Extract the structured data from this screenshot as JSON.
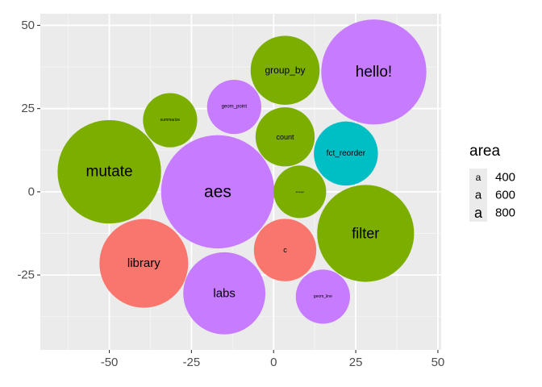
{
  "chart_data": {
    "type": "bubble",
    "xlim": [
      -71,
      51
    ],
    "ylim": [
      -47.5,
      53.5
    ],
    "x_ticks": [
      -50,
      -25,
      0,
      25,
      50
    ],
    "x_tick_labels": [
      "-50",
      "-25",
      "0",
      "25",
      "50"
    ],
    "y_ticks": [
      -25,
      0,
      25,
      50
    ],
    "y_tick_labels": [
      "-25",
      "0",
      "25",
      "50"
    ],
    "grid": true,
    "legend": {
      "title": "area",
      "position": "right",
      "symbol": "a",
      "entries": [
        {
          "label": "400"
        },
        {
          "label": "600"
        },
        {
          "label": "800"
        }
      ]
    },
    "bubbles": [
      {
        "label": "hello!",
        "x": 30.5,
        "y": 36.0,
        "r": 16.0,
        "color": "#c77cff"
      },
      {
        "label": "group_by",
        "x": 3.5,
        "y": 36.5,
        "r": 10.5,
        "color": "#7cae00"
      },
      {
        "label": "geom_point",
        "x": -12.0,
        "y": 25.5,
        "r": 8.25,
        "color": "#c77cff"
      },
      {
        "label": "summarize",
        "x": -31.5,
        "y": 21.5,
        "r": 8.25,
        "color": "#7cae00"
      },
      {
        "label": "count",
        "x": 3.5,
        "y": 16.5,
        "r": 9.0,
        "color": "#7cae00"
      },
      {
        "label": "fct_reorder",
        "x": 22.0,
        "y": 11.5,
        "r": 9.75,
        "color": "#00bfc4"
      },
      {
        "label": "mutate",
        "x": -50.0,
        "y": 6.0,
        "r": 15.75,
        "color": "#7cae00"
      },
      {
        "label": "aes",
        "x": -17.0,
        "y": 0.0,
        "r": 17.25,
        "color": "#c77cff"
      },
      {
        "label": "arrange",
        "x": 8.0,
        "y": 0.0,
        "r": 8.0,
        "color": "#7cae00"
      },
      {
        "label": "filter",
        "x": 28.0,
        "y": -12.5,
        "r": 14.75,
        "color": "#7cae00"
      },
      {
        "label": "library",
        "x": -39.5,
        "y": -21.5,
        "r": 13.5,
        "color": "#f8766d"
      },
      {
        "label": "c",
        "x": 3.5,
        "y": -17.5,
        "r": 9.5,
        "color": "#f8766d"
      },
      {
        "label": "labs",
        "x": -15.0,
        "y": -30.5,
        "r": 12.5,
        "color": "#c77cff"
      },
      {
        "label": "geom_line",
        "x": 15.0,
        "y": -31.5,
        "r": 8.25,
        "color": "#c77cff"
      }
    ],
    "label_sizes": {
      "hello!": 19,
      "group_by": 12,
      "geom_point": 6,
      "summarize": 5,
      "count": 9,
      "fct_reorder": 10,
      "mutate": 19,
      "aes": 21,
      "arrange": 3,
      "filter": 18,
      "library": 15,
      "c": 9,
      "labs": 15,
      "geom_line": 5
    }
  },
  "colors": {
    "panel_background": "#ebebeb",
    "grid_major": "#ffffff",
    "grid_minor": "#f5f5f5"
  }
}
